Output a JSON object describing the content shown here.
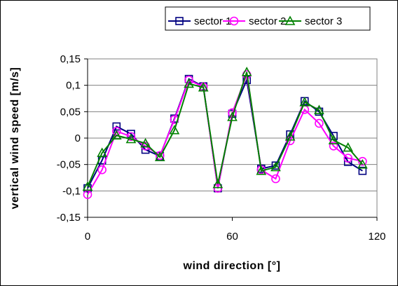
{
  "chart_data": {
    "type": "line",
    "xlabel": "wind direction [°]",
    "ylabel": "vertical wind speed [m/s]",
    "xlim": [
      0,
      120
    ],
    "ylim": [
      -0.15,
      0.15
    ],
    "x_ticks": [
      0,
      60,
      120
    ],
    "x_tick_labels": [
      "0",
      "60",
      "120"
    ],
    "y_ticks": [
      -0.15,
      -0.1,
      -0.05,
      0,
      0.05,
      0.1,
      0.15
    ],
    "y_tick_labels": [
      "-0,15",
      "-0,1",
      "-0,05",
      "0",
      "0,05",
      "0,1",
      "0,15"
    ],
    "grid": "horizontal",
    "legend_position": "top",
    "x": [
      0,
      6,
      12,
      18,
      24,
      30,
      36,
      42,
      48,
      54,
      60,
      66,
      72,
      78,
      84,
      90,
      96,
      102,
      108,
      114
    ],
    "series": [
      {
        "name": "sector 1",
        "color": "#000080",
        "marker": "square",
        "values": [
          -0.095,
          -0.042,
          0.022,
          0.008,
          -0.022,
          -0.034,
          0.037,
          0.112,
          0.098,
          -0.095,
          0.046,
          0.11,
          -0.058,
          -0.052,
          0.007,
          0.07,
          0.05,
          0.004,
          -0.045,
          -0.062
        ]
      },
      {
        "name": "sector 2",
        "color": "#ff00ff",
        "marker": "circle",
        "values": [
          -0.107,
          -0.06,
          0.013,
          0.003,
          -0.015,
          -0.033,
          0.035,
          0.11,
          0.097,
          -0.095,
          0.048,
          0.12,
          -0.06,
          -0.077,
          -0.005,
          0.054,
          0.028,
          -0.015,
          -0.038,
          -0.044
        ]
      },
      {
        "name": "sector 3",
        "color": "#008000",
        "marker": "triangle",
        "values": [
          -0.092,
          -0.028,
          0.005,
          -0.002,
          -0.01,
          -0.036,
          0.015,
          0.103,
          0.096,
          -0.087,
          0.04,
          0.125,
          -0.062,
          -0.055,
          0.003,
          0.068,
          0.053,
          -0.004,
          -0.018,
          -0.05
        ]
      }
    ]
  }
}
